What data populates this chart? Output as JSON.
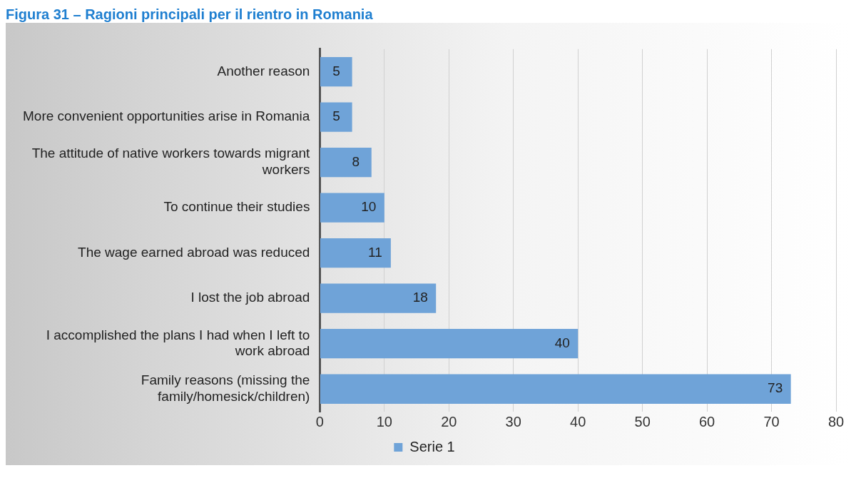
{
  "chart_data": {
    "type": "bar",
    "title": "Figura 31 – Ragioni principali per il rientro in Romania",
    "orientation": "horizontal",
    "categories": [
      "Another reason",
      "More convenient opportunities arise in Romania",
      "The attitude of native workers towards migrant workers",
      "To continue their studies",
      "The wage earned abroad was reduced",
      "I lost the job abroad",
      "I accomplished the plans I had when I left to work abroad",
      "Family reasons (missing the family/homesick/children)"
    ],
    "series": [
      {
        "name": "Serie 1",
        "color": "#6fa3d8",
        "values": [
          5,
          5,
          8,
          10,
          11,
          18,
          40,
          73
        ]
      }
    ],
    "xlim": [
      0,
      80
    ],
    "xticks": [
      0,
      10,
      20,
      30,
      40,
      50,
      60,
      70,
      80
    ],
    "grid": "x",
    "legend": "bottom",
    "data_labels": true
  }
}
